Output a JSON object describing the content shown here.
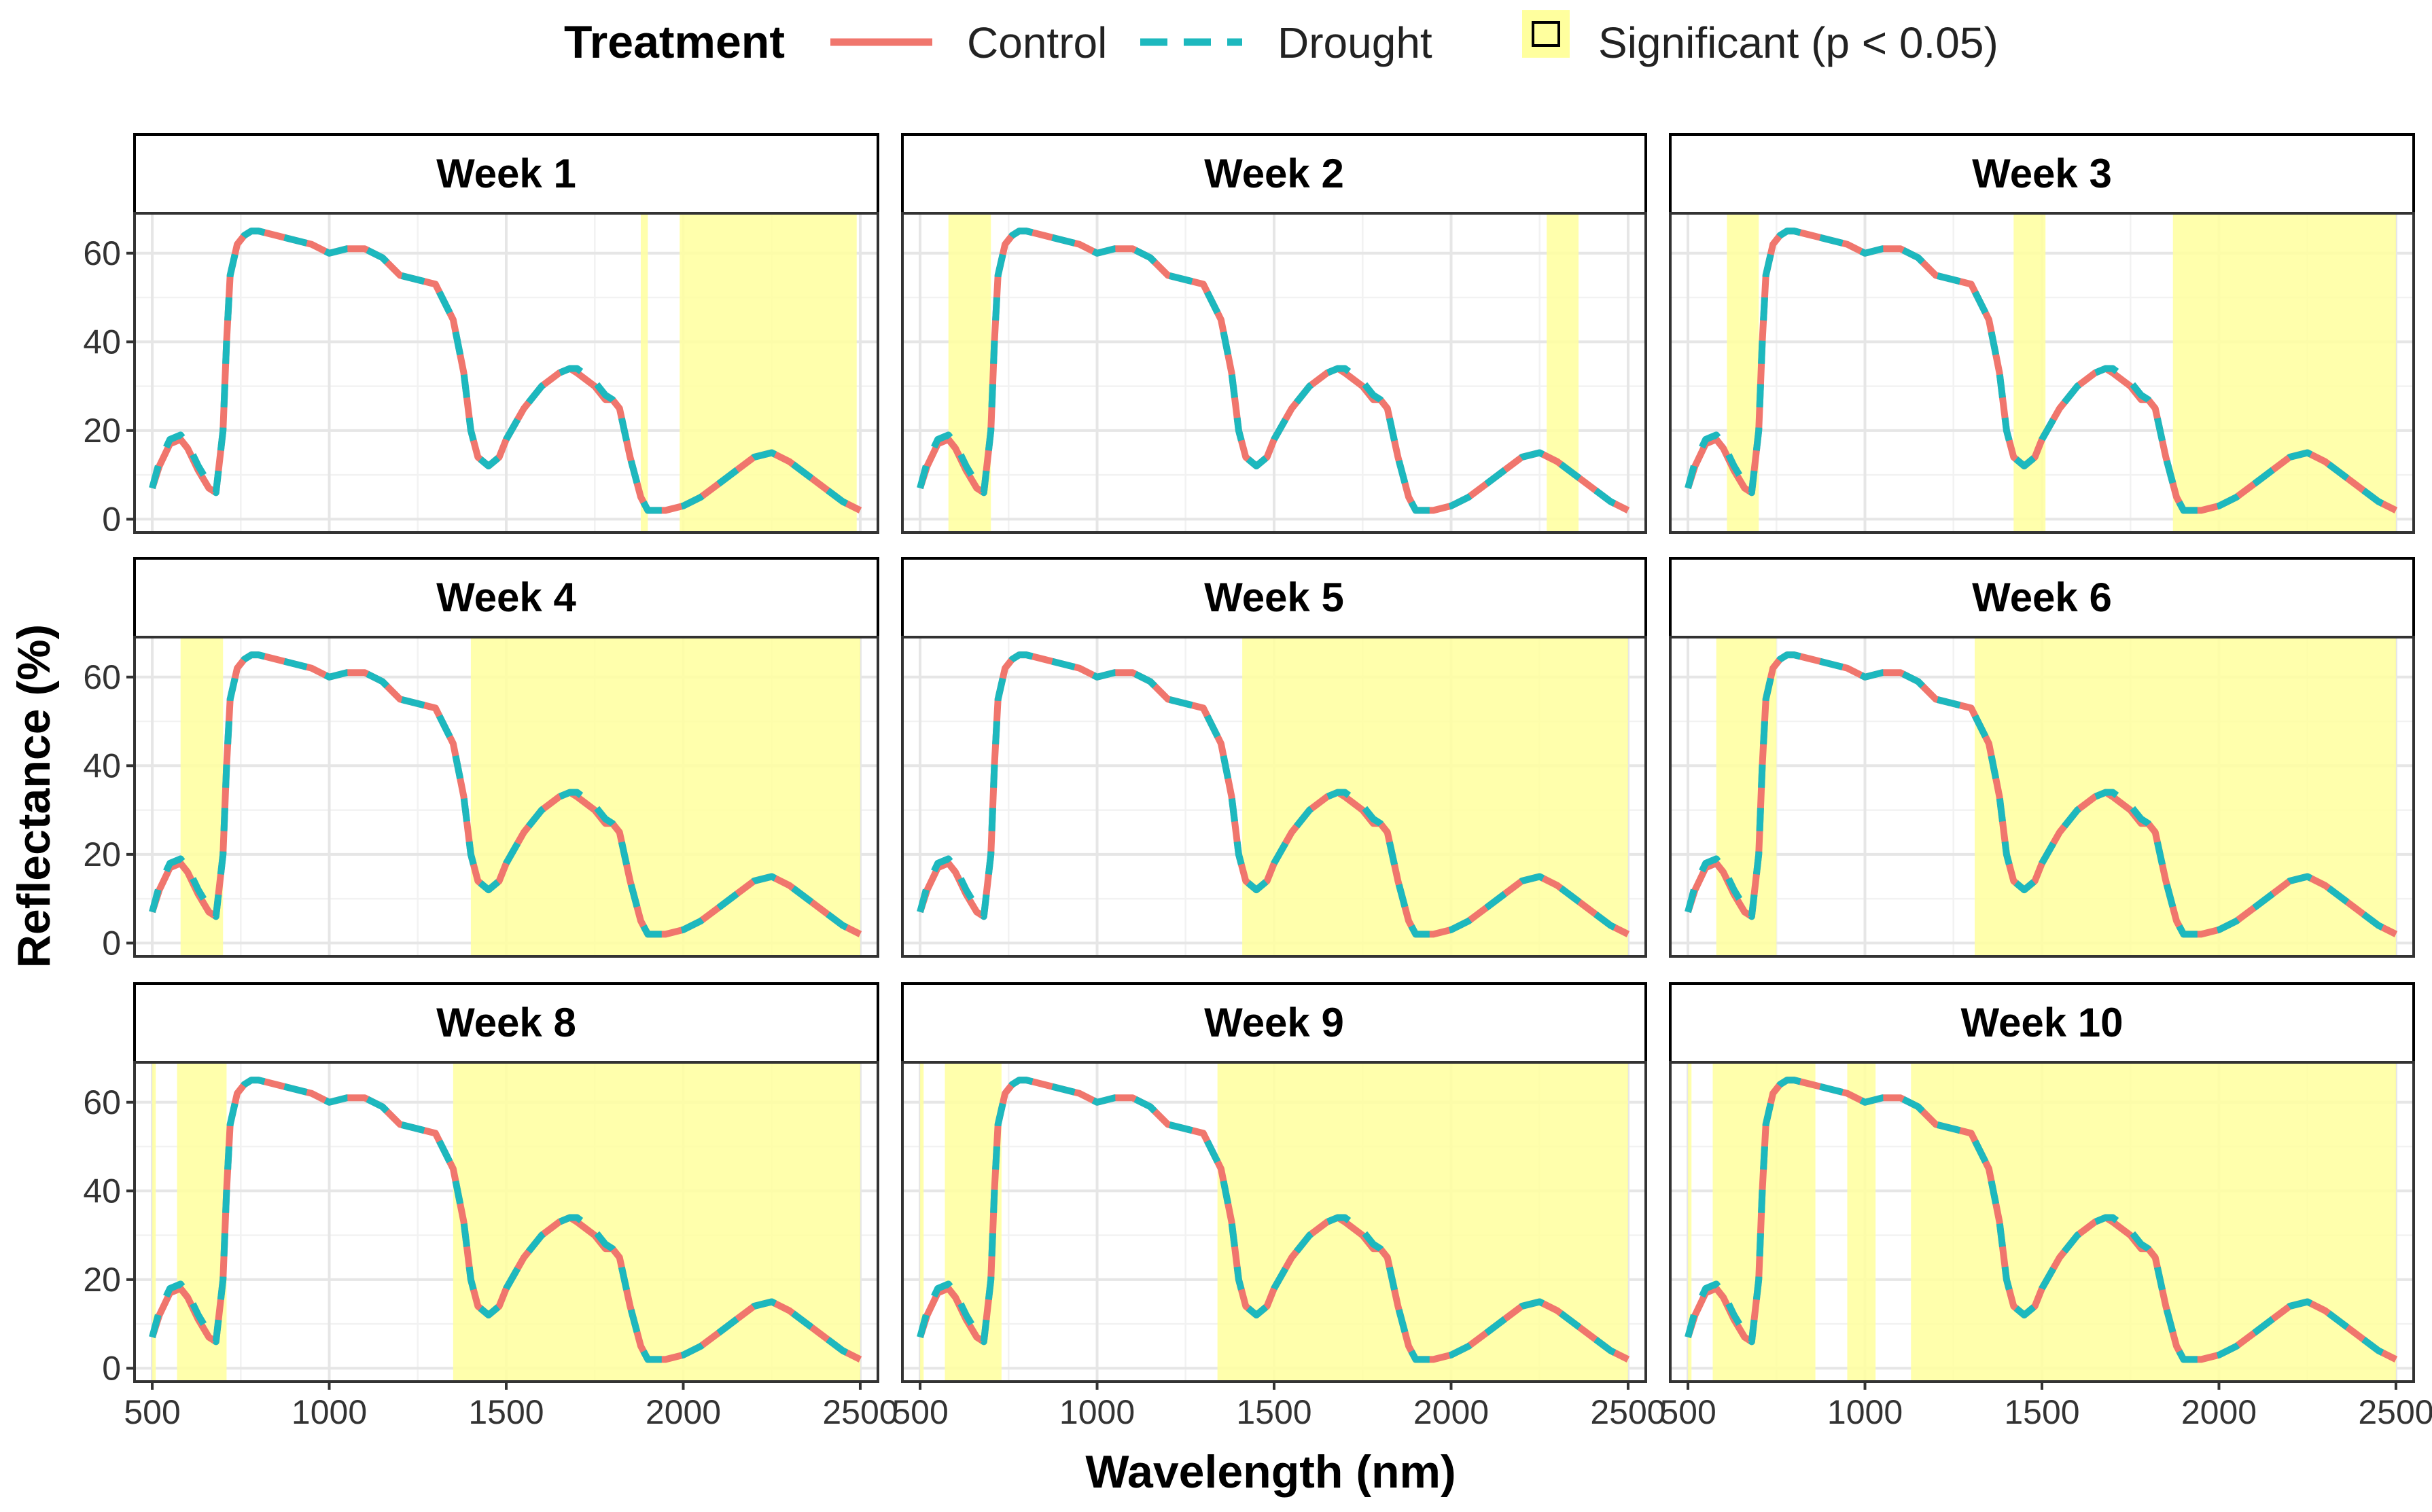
{
  "chart_data": {
    "type": "line",
    "xlabel": "Wavelength (nm)",
    "ylabel": "Reflectance (%)",
    "xlim": [
      450,
      2550
    ],
    "ylim": [
      -3,
      69
    ],
    "xticks": [
      500,
      1000,
      1500,
      2000,
      2500
    ],
    "yticks": [
      0,
      20,
      40,
      60
    ],
    "legend": {
      "title": "Treatment",
      "placement": "top",
      "entries": [
        {
          "name": "Control",
          "style": "solid",
          "color": "#F0766D"
        },
        {
          "name": "Drought",
          "style": "dashed",
          "color": "#1DB8BE"
        },
        {
          "name": "Significant (p < 0.05)",
          "style": "box",
          "color": "#FFFF9E"
        }
      ]
    },
    "spectrum": {
      "x": [
        500,
        520,
        550,
        580,
        600,
        630,
        660,
        680,
        700,
        710,
        720,
        740,
        760,
        780,
        800,
        850,
        900,
        950,
        1000,
        1050,
        1100,
        1150,
        1200,
        1250,
        1300,
        1350,
        1380,
        1400,
        1420,
        1450,
        1480,
        1500,
        1550,
        1600,
        1650,
        1680,
        1700,
        1750,
        1780,
        1800,
        1820,
        1850,
        1880,
        1900,
        1920,
        1950,
        2000,
        2050,
        2100,
        2150,
        2200,
        2250,
        2300,
        2350,
        2400,
        2450,
        2500
      ],
      "series": [
        {
          "name": "Control",
          "values": [
            7,
            12,
            17,
            18,
            16,
            11,
            7,
            6,
            20,
            40,
            55,
            62,
            64,
            65,
            65,
            64,
            63,
            62,
            60,
            61,
            61,
            59,
            55,
            54,
            53,
            45,
            33,
            20,
            14,
            12,
            14,
            18,
            25,
            30,
            33,
            34,
            33,
            30,
            27,
            27,
            25,
            14,
            5,
            2,
            2,
            2,
            3,
            5,
            8,
            11,
            14,
            15,
            13,
            10,
            7,
            4,
            2
          ]
        },
        {
          "name": "Drought",
          "values": [
            7,
            13,
            18,
            19,
            17,
            12,
            8,
            6,
            20,
            40,
            55,
            62,
            64,
            65,
            65,
            64,
            63,
            62,
            60,
            61,
            61,
            59,
            55,
            54,
            53,
            45,
            33,
            20,
            14,
            12,
            14,
            18,
            25,
            30,
            33,
            34,
            34,
            31,
            28,
            27,
            25,
            14,
            5,
            2,
            2,
            2,
            3,
            5,
            8,
            11,
            14,
            15,
            13,
            10,
            7,
            4,
            2
          ]
        }
      ]
    },
    "panels": [
      {
        "title": "Week 1",
        "significant": [
          [
            1880,
            1900
          ],
          [
            1990,
            2490
          ]
        ]
      },
      {
        "title": "Week 2",
        "significant": [
          [
            580,
            700
          ],
          [
            2270,
            2360
          ]
        ]
      },
      {
        "title": "Week 3",
        "significant": [
          [
            610,
            700
          ],
          [
            1420,
            1510
          ],
          [
            1870,
            2500
          ]
        ]
      },
      {
        "title": "Week 4",
        "significant": [
          [
            580,
            700
          ],
          [
            1400,
            2500
          ]
        ]
      },
      {
        "title": "Week 5",
        "significant": [
          [
            1410,
            2500
          ]
        ]
      },
      {
        "title": "Week 6",
        "significant": [
          [
            580,
            750
          ],
          [
            1310,
            2500
          ]
        ]
      },
      {
        "title": "Week 8",
        "significant": [
          [
            500,
            510
          ],
          [
            570,
            710
          ],
          [
            1350,
            2500
          ]
        ]
      },
      {
        "title": "Week 9",
        "significant": [
          [
            500,
            510
          ],
          [
            570,
            730
          ],
          [
            1340,
            2500
          ]
        ]
      },
      {
        "title": "Week 10",
        "significant": [
          [
            500,
            510
          ],
          [
            570,
            860
          ],
          [
            950,
            1030
          ],
          [
            1130,
            2500
          ]
        ]
      }
    ]
  }
}
